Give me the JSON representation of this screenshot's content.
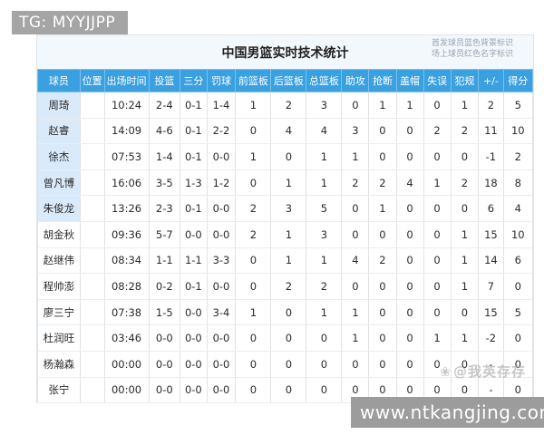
{
  "badges": {
    "top_left": "TG: MYYJJPP",
    "bottom_right": "www.ntkangjing.com"
  },
  "card": {
    "title": "中国男篮实时技术统计",
    "legend": [
      "首发球员蓝色背景标识",
      "场上球员红色名字标识"
    ],
    "watermark_icon": "seal-flower-icon",
    "watermark_text": "@我英存存"
  },
  "colors": {
    "header_blue": "#3aa0e0",
    "starter_row_bg": "#d9eafa",
    "badge_gray": "#9c9c9c"
  },
  "table": {
    "columns": [
      "球员",
      "位置",
      "出场时间",
      "投篮",
      "三分",
      "罚球",
      "前篮板",
      "后篮板",
      "总篮板",
      "助攻",
      "抢断",
      "盖帽",
      "失误",
      "犯规",
      "+/-",
      "得分"
    ],
    "rows": [
      {
        "starter": true,
        "cells": [
          "周琦",
          "",
          "10:24",
          "2-4",
          "0-1",
          "1-4",
          "1",
          "2",
          "3",
          "0",
          "1",
          "1",
          "0",
          "1",
          "2",
          "5"
        ]
      },
      {
        "starter": true,
        "cells": [
          "赵睿",
          "",
          "14:09",
          "4-6",
          "0-1",
          "2-2",
          "0",
          "4",
          "4",
          "3",
          "0",
          "0",
          "2",
          "2",
          "11",
          "10"
        ]
      },
      {
        "starter": true,
        "cells": [
          "徐杰",
          "",
          "07:53",
          "1-4",
          "0-1",
          "0-0",
          "1",
          "0",
          "1",
          "1",
          "0",
          "0",
          "0",
          "0",
          "-1",
          "2"
        ]
      },
      {
        "starter": true,
        "cells": [
          "曾凡博",
          "",
          "16:06",
          "3-5",
          "1-3",
          "1-2",
          "0",
          "1",
          "1",
          "2",
          "2",
          "4",
          "1",
          "2",
          "18",
          "8"
        ]
      },
      {
        "starter": true,
        "cells": [
          "朱俊龙",
          "",
          "13:26",
          "2-3",
          "0-1",
          "0-0",
          "2",
          "3",
          "5",
          "0",
          "1",
          "0",
          "0",
          "0",
          "6",
          "4"
        ]
      },
      {
        "starter": false,
        "cells": [
          "胡金秋",
          "",
          "09:36",
          "5-7",
          "0-0",
          "0-0",
          "2",
          "1",
          "3",
          "0",
          "0",
          "0",
          "0",
          "1",
          "15",
          "10"
        ]
      },
      {
        "starter": false,
        "cells": [
          "赵继伟",
          "",
          "08:34",
          "1-1",
          "1-1",
          "3-3",
          "0",
          "1",
          "1",
          "4",
          "2",
          "0",
          "0",
          "1",
          "14",
          "6"
        ]
      },
      {
        "starter": false,
        "cells": [
          "程帅澎",
          "",
          "08:28",
          "0-2",
          "0-1",
          "0-0",
          "0",
          "2",
          "2",
          "0",
          "0",
          "0",
          "0",
          "1",
          "7",
          "0"
        ]
      },
      {
        "starter": false,
        "cells": [
          "廖三宁",
          "",
          "07:38",
          "1-5",
          "0-0",
          "3-4",
          "1",
          "0",
          "1",
          "1",
          "0",
          "0",
          "0",
          "0",
          "15",
          "5"
        ]
      },
      {
        "starter": false,
        "cells": [
          "杜润旺",
          "",
          "03:46",
          "0-0",
          "0-0",
          "0-0",
          "0",
          "0",
          "0",
          "1",
          "0",
          "0",
          "1",
          "1",
          "-2",
          "0"
        ]
      },
      {
        "starter": false,
        "cells": [
          "杨瀚森",
          "",
          "00:00",
          "0-0",
          "0-0",
          "0-0",
          "0",
          "0",
          "0",
          "0",
          "0",
          "0",
          "0",
          "0",
          "-",
          "0"
        ]
      },
      {
        "starter": false,
        "cells": [
          "张宁",
          "",
          "00:00",
          "0-0",
          "0-0",
          "0-0",
          "0",
          "0",
          "0",
          "0",
          "0",
          "0",
          "0",
          "0",
          "-",
          "0"
        ]
      }
    ]
  }
}
